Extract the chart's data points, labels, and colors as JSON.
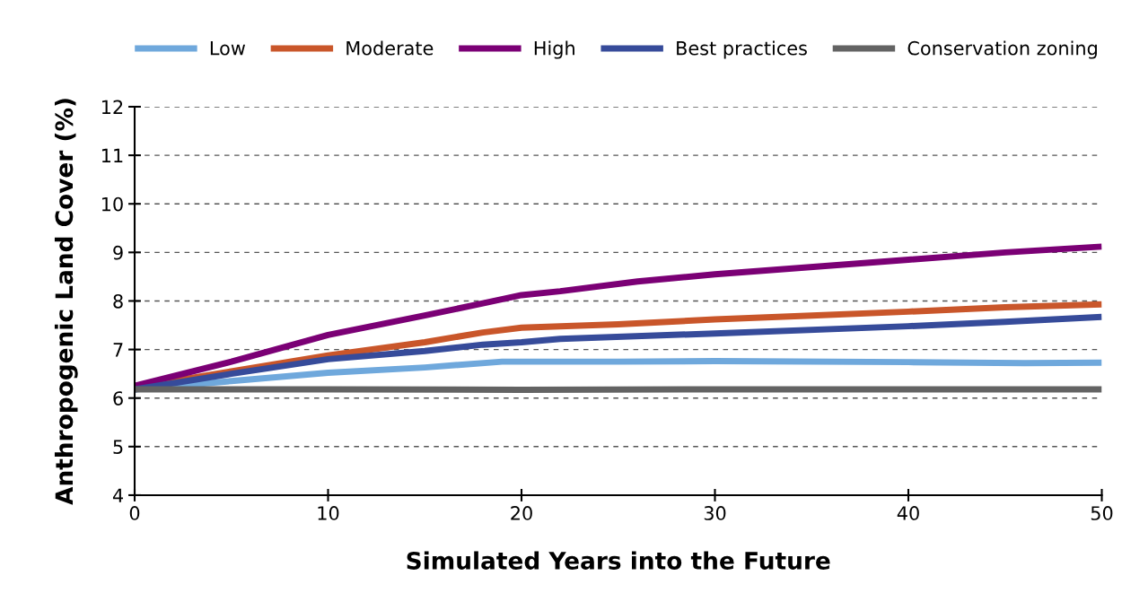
{
  "chart_data": {
    "type": "line",
    "xlabel": "Simulated Years into the Future",
    "ylabel": "Anthropogenic Land Cover (%)",
    "xlim": [
      0,
      50
    ],
    "xticks": [
      0,
      10,
      20,
      30,
      40,
      50
    ],
    "ylim": [
      4,
      12
    ],
    "yticks": [
      4,
      5,
      6,
      7,
      8,
      9,
      10,
      11,
      12
    ],
    "grid": "y",
    "legend": "top",
    "marker": "none",
    "line_style": "solid",
    "series": [
      {
        "name": "Low",
        "color": "#6fa8dc",
        "x": [
          0,
          5,
          10,
          15,
          19,
          25,
          30,
          40,
          46,
          50
        ],
        "values": [
          6.18,
          6.35,
          6.52,
          6.63,
          6.75,
          6.75,
          6.76,
          6.74,
          6.72,
          6.73
        ]
      },
      {
        "name": "Moderate",
        "color": "#c9562a",
        "x": [
          0,
          5,
          10,
          15,
          18,
          20,
          25,
          30,
          35,
          40,
          45,
          50
        ],
        "values": [
          6.22,
          6.55,
          6.88,
          7.15,
          7.35,
          7.45,
          7.52,
          7.62,
          7.7,
          7.78,
          7.87,
          7.93
        ]
      },
      {
        "name": "High",
        "color": "#7b0075",
        "x": [
          0,
          5,
          10,
          15,
          18,
          20,
          22,
          26,
          30,
          36,
          40,
          45,
          50
        ],
        "values": [
          6.25,
          6.75,
          7.3,
          7.7,
          7.95,
          8.12,
          8.2,
          8.4,
          8.55,
          8.73,
          8.85,
          9.0,
          9.12
        ]
      },
      {
        "name": "Best practices",
        "color": "#364b9a",
        "x": [
          0,
          5,
          10,
          15,
          18,
          20,
          22,
          30,
          40,
          45,
          50
        ],
        "values": [
          6.18,
          6.5,
          6.8,
          6.97,
          7.1,
          7.15,
          7.22,
          7.33,
          7.48,
          7.57,
          7.67
        ]
      },
      {
        "name": "Conservation zoning",
        "color": "#636363",
        "x": [
          0,
          10,
          20,
          30,
          40,
          50
        ],
        "values": [
          6.18,
          6.18,
          6.17,
          6.18,
          6.18,
          6.18
        ]
      }
    ]
  }
}
